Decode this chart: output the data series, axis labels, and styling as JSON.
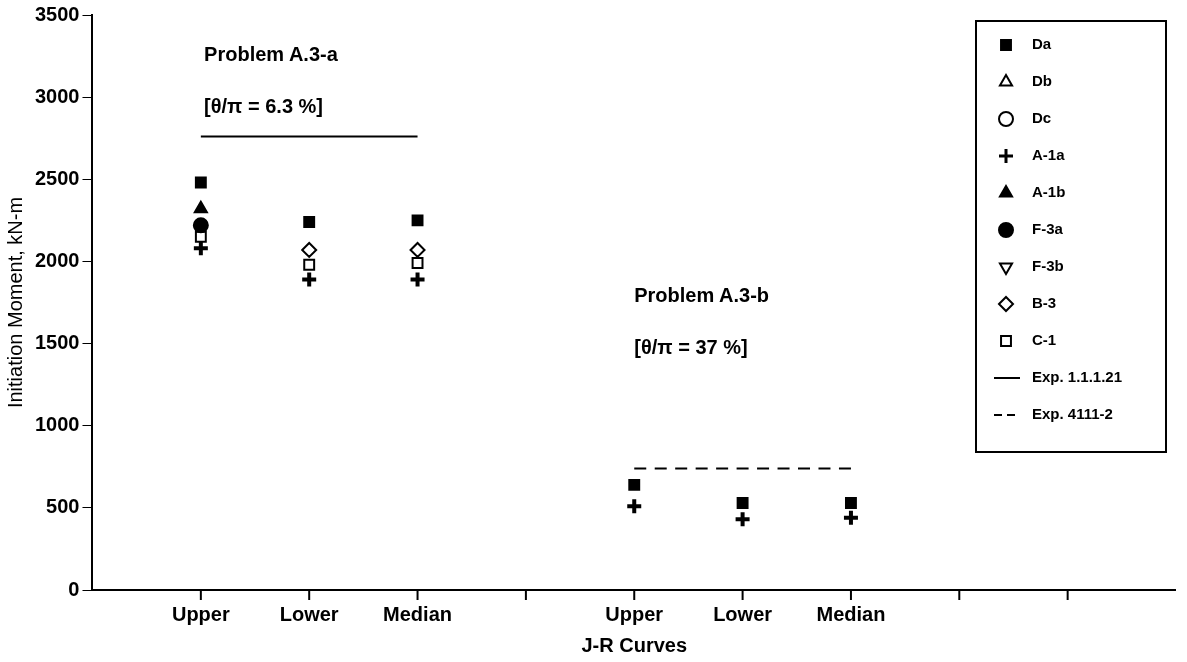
{
  "chart_data": {
    "type": "scatter",
    "xlabel": "J-R Curves",
    "ylabel": "Initiation Moment, kN-m",
    "categories": [
      null,
      "Upper",
      "Lower",
      "Median",
      null,
      "Upper",
      "Lower",
      "Median",
      null,
      null,
      null
    ],
    "ylim": [
      0,
      3500
    ],
    "yticks": [
      0,
      500,
      1000,
      1500,
      2000,
      2500,
      3000,
      3500
    ],
    "grid": false,
    "legend": "top right",
    "annotations": [
      "Problem A.3-a",
      "[θ/π = 6.3 %]",
      "Problem A.3-b",
      "[θ/π = 37 %]"
    ],
    "series": [
      {
        "name": "Da",
        "color": "#000000",
        "marker": "square",
        "values": [
          null,
          2480,
          2240,
          2250,
          null,
          640,
          530,
          530,
          null,
          null,
          null
        ]
      },
      {
        "name": "Db",
        "color": "#ffffff",
        "marker": "triangle",
        "values": [
          null,
          null,
          null,
          null,
          null,
          null,
          null,
          null,
          null,
          null,
          null
        ]
      },
      {
        "name": "Dc",
        "color": "#ffffff",
        "marker": "circle",
        "values": [
          null,
          null,
          null,
          null,
          null,
          null,
          null,
          null,
          null,
          null,
          null
        ]
      },
      {
        "name": "A-1a",
        "color": "#000000",
        "marker": "cross",
        "values": [
          null,
          2080,
          1890,
          1890,
          null,
          510,
          430,
          440,
          null,
          null,
          null
        ]
      },
      {
        "name": "A-1b",
        "color": "#000000",
        "marker": "triangle",
        "values": [
          null,
          2320,
          null,
          null,
          null,
          null,
          null,
          null,
          null,
          null,
          null
        ]
      },
      {
        "name": "F-3a",
        "color": "#000000",
        "marker": "circle",
        "values": [
          null,
          2220,
          null,
          null,
          null,
          null,
          null,
          null,
          null,
          null,
          null
        ]
      },
      {
        "name": "F-3b",
        "color": "#ffffff",
        "marker": "triangle_down",
        "values": [
          null,
          null,
          null,
          null,
          null,
          null,
          null,
          null,
          null,
          null,
          null
        ]
      },
      {
        "name": "B-3",
        "color": "#ffffff",
        "marker": "diamond",
        "values": [
          null,
          null,
          2070,
          2070,
          null,
          null,
          null,
          null,
          null,
          null,
          null
        ]
      },
      {
        "name": "C-1",
        "color": "#ffffff",
        "marker": "square",
        "values": [
          null,
          2150,
          1980,
          1990,
          null,
          null,
          null,
          null,
          null,
          null,
          null
        ]
      },
      {
        "name": "Exp. 1.1.1.21",
        "type": "line",
        "color": "#000000",
        "marker": "none",
        "line_style": "solid",
        "values": [
          null,
          2760,
          2760,
          2760,
          null,
          null,
          null,
          null,
          null,
          null,
          null
        ]
      },
      {
        "name": "Exp. 4111-2",
        "type": "line",
        "color": "#000000",
        "marker": "none",
        "line_style": "dashed",
        "values": [
          null,
          null,
          null,
          null,
          null,
          740,
          740,
          740,
          null,
          null,
          null
        ]
      }
    ]
  }
}
